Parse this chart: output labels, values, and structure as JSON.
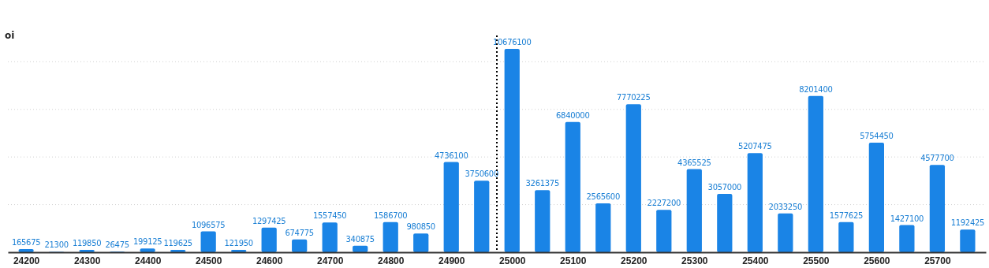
{
  "chart_data": {
    "type": "bar",
    "ylabel": "oi",
    "x": [
      24200,
      24250,
      24300,
      24350,
      24400,
      24450,
      24500,
      24550,
      24600,
      24650,
      24700,
      24750,
      24800,
      24850,
      24900,
      24950,
      25000,
      25050,
      25100,
      25150,
      25200,
      25250,
      25300,
      25350,
      25400,
      25450,
      25500,
      25550,
      25600,
      25650,
      25700,
      25750
    ],
    "values": [
      165675,
      21300,
      119850,
      26475,
      199125,
      119625,
      1096575,
      121950,
      1297425,
      674775,
      1557450,
      340875,
      1586700,
      980850,
      4736100,
      3750600,
      10676100,
      3261375,
      6840000,
      2565600,
      7770225,
      2227200,
      4365525,
      3057000,
      5207475,
      2033250,
      8201400,
      1577625,
      5754450,
      1427100,
      4577700,
      1192425
    ],
    "color": "#1a84e6",
    "data_labels": true,
    "xlim": [
      24170,
      25780
    ],
    "xticks": [
      24200,
      24300,
      24400,
      24500,
      24600,
      24700,
      24800,
      24900,
      25000,
      25100,
      25200,
      25300,
      25400,
      25500,
      25600,
      25700
    ],
    "yticks": [
      {
        "value": 2500000,
        "label": null
      },
      {
        "value": 5000000,
        "label": null
      },
      {
        "value": 7500000,
        "label": null
      },
      {
        "value": 10000000,
        "label": null
      }
    ],
    "grid": "y",
    "ref_lines": [
      {
        "axis": "x",
        "value": 24975,
        "line_style": "dotted",
        "color": "#000000"
      }
    ]
  }
}
